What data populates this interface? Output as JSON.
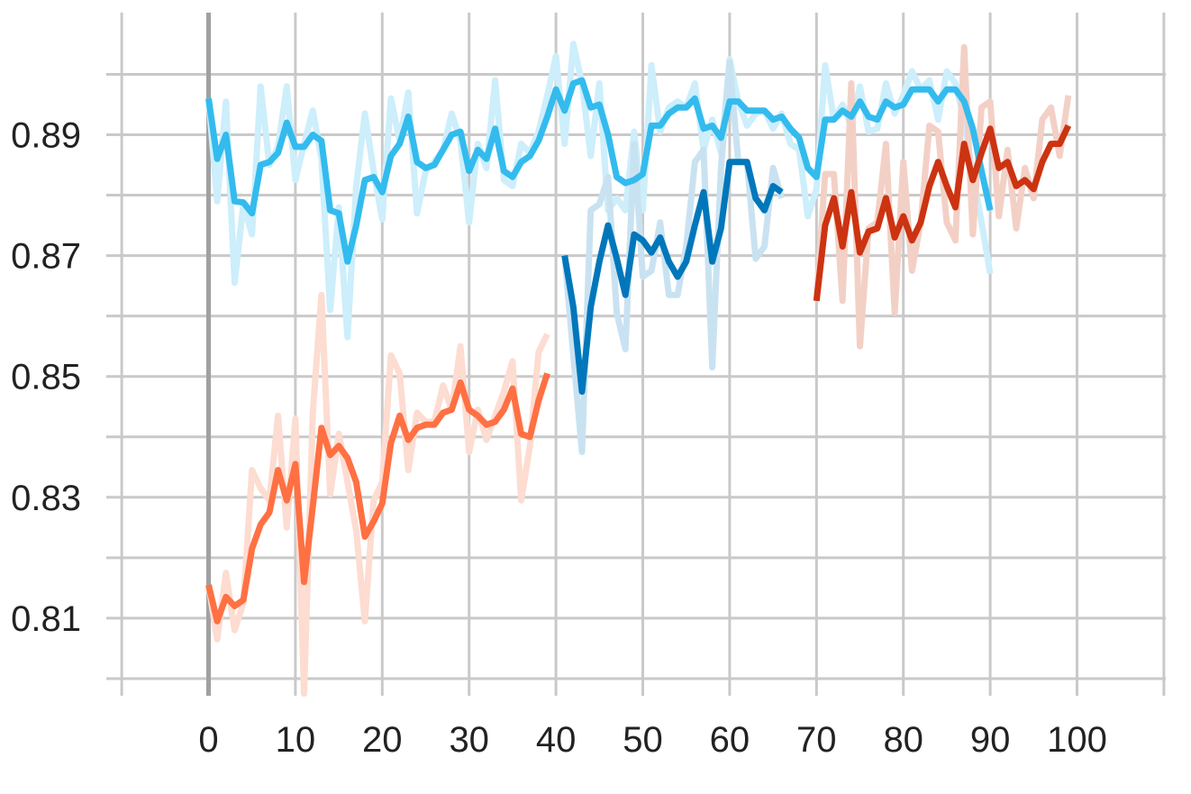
{
  "chart_data": {
    "type": "line",
    "title": "",
    "xlabel": "",
    "ylabel": "",
    "xlim": [
      -10,
      110
    ],
    "ylim": [
      0.8,
      0.909
    ],
    "x_ticks": [
      0,
      10,
      20,
      30,
      40,
      50,
      60,
      70,
      80,
      90,
      100
    ],
    "x_tick_labels": [
      "0",
      "10",
      "20",
      "30",
      "40",
      "50",
      "60",
      "70",
      "80",
      "90",
      "100"
    ],
    "y_ticks": [
      0.81,
      0.83,
      0.85,
      0.87,
      0.89
    ],
    "y_tick_labels": [
      "0.81",
      "0.83",
      "0.85",
      "0.87",
      "0.89"
    ],
    "grid": true,
    "legend": "none",
    "series": [
      {
        "color": "#33BBEE",
        "raw_color": "#cdeefb",
        "x_start": 0,
        "smoothed": [
          0.896,
          0.886,
          0.89,
          0.879,
          0.8788,
          0.877,
          0.885,
          0.8855,
          0.887,
          0.892,
          0.888,
          0.888,
          0.89,
          0.889,
          0.8775,
          0.877,
          0.869,
          0.875,
          0.8825,
          0.883,
          0.8805,
          0.8865,
          0.8885,
          0.893,
          0.8855,
          0.8845,
          0.885,
          0.8875,
          0.89,
          0.8905,
          0.884,
          0.8875,
          0.886,
          0.891,
          0.884,
          0.883,
          0.8855,
          0.8865,
          0.889,
          0.893,
          0.8975,
          0.894,
          0.8985,
          0.899,
          0.8945,
          0.895,
          0.89,
          0.883,
          0.882,
          0.8825,
          0.8835,
          0.8915,
          0.8915,
          0.8935,
          0.8945,
          0.8945,
          0.896,
          0.891,
          0.8915,
          0.8895,
          0.8955,
          0.8955,
          0.894,
          0.894,
          0.894,
          0.8925,
          0.893,
          0.891,
          0.8895,
          0.8845,
          0.883,
          0.8925,
          0.8925,
          0.894,
          0.893,
          0.8955,
          0.893,
          0.8925,
          0.8955,
          0.8945,
          0.895,
          0.8975,
          0.8975,
          0.8975,
          0.8955,
          0.8975,
          0.8975,
          0.8955,
          0.891,
          0.884,
          0.8775
        ],
        "raw": [
          0.896,
          0.879,
          0.8955,
          0.8655,
          0.8785,
          0.8735,
          0.898,
          0.885,
          0.888,
          0.898,
          0.8825,
          0.8885,
          0.894,
          0.886,
          0.861,
          0.878,
          0.8565,
          0.8815,
          0.8935,
          0.884,
          0.876,
          0.896,
          0.889,
          0.897,
          0.877,
          0.884,
          0.8855,
          0.8875,
          0.8935,
          0.889,
          0.8755,
          0.8885,
          0.8845,
          0.899,
          0.8825,
          0.8815,
          0.8885,
          0.887,
          0.8905,
          0.8965,
          0.903,
          0.8885,
          0.905,
          0.8985,
          0.8865,
          0.8985,
          0.8775,
          0.8795,
          0.8775,
          0.8905,
          0.8775,
          0.9015,
          0.8905,
          0.8945,
          0.8955,
          0.8945,
          0.8985,
          0.8875,
          0.8925,
          0.887,
          0.9025,
          0.8955,
          0.8915,
          0.8935,
          0.894,
          0.891,
          0.8935,
          0.8885,
          0.8875,
          0.8765,
          0.881,
          0.9015,
          0.8925,
          0.895,
          0.8915,
          0.898,
          0.8905,
          0.891,
          0.8985,
          0.8935,
          0.8965,
          0.9005,
          0.8975,
          0.899,
          0.8925,
          0.9005,
          0.8985,
          0.8925,
          0.8835,
          0.8755,
          0.867
        ]
      },
      {
        "color": "#FF7043",
        "raw_color": "#fddcd1",
        "x_start": 0,
        "smoothed": [
          0.8155,
          0.8095,
          0.8135,
          0.812,
          0.813,
          0.8215,
          0.8255,
          0.8275,
          0.8345,
          0.8295,
          0.8355,
          0.816,
          0.8285,
          0.8415,
          0.837,
          0.8385,
          0.8365,
          0.8325,
          0.8235,
          0.826,
          0.829,
          0.839,
          0.8435,
          0.8395,
          0.8415,
          0.842,
          0.842,
          0.844,
          0.8445,
          0.849,
          0.8445,
          0.8435,
          0.842,
          0.8425,
          0.8445,
          0.848,
          0.8405,
          0.84,
          0.846,
          0.8505
        ],
        "raw": [
          0.8155,
          0.8065,
          0.8175,
          0.808,
          0.8125,
          0.8345,
          0.8315,
          0.8295,
          0.8435,
          0.825,
          0.843,
          0.7975,
          0.844,
          0.8635,
          0.8305,
          0.8405,
          0.8325,
          0.8245,
          0.8095,
          0.8295,
          0.8325,
          0.8535,
          0.8505,
          0.8345,
          0.844,
          0.8425,
          0.8425,
          0.8485,
          0.8445,
          0.855,
          0.8375,
          0.8445,
          0.8395,
          0.8435,
          0.8475,
          0.8525,
          0.8295,
          0.8385,
          0.854,
          0.857
        ]
      },
      {
        "color": "#0077BB",
        "raw_color": "#c9e2f1",
        "x_start": 41,
        "smoothed": [
          0.87,
          0.8615,
          0.8475,
          0.8615,
          0.869,
          0.875,
          0.8695,
          0.8635,
          0.8735,
          0.8725,
          0.8705,
          0.873,
          0.869,
          0.8665,
          0.869,
          0.875,
          0.8805,
          0.869,
          0.8745,
          0.8855,
          0.8855,
          0.8855,
          0.8795,
          0.8775,
          0.8815,
          0.8805
        ],
        "raw": [
          0.87,
          0.8535,
          0.8375,
          0.8775,
          0.8785,
          0.883,
          0.8605,
          0.8545,
          0.8885,
          0.8665,
          0.8675,
          0.8755,
          0.8635,
          0.8635,
          0.8715,
          0.8855,
          0.8875,
          0.8515,
          0.8845,
          0.902,
          0.8855,
          0.8855,
          0.8695,
          0.8715,
          0.8845,
          0.8795
        ]
      },
      {
        "color": "#CC3311",
        "raw_color": "#f3d0c6",
        "x_start": 70,
        "smoothed": [
          0.8625,
          0.875,
          0.8795,
          0.8715,
          0.8805,
          0.8705,
          0.874,
          0.8745,
          0.8795,
          0.873,
          0.8765,
          0.8725,
          0.8755,
          0.8815,
          0.8855,
          0.8815,
          0.878,
          0.8885,
          0.8825,
          0.887,
          0.891,
          0.8845,
          0.8855,
          0.8815,
          0.8825,
          0.881,
          0.8855,
          0.8885,
          0.8885,
          0.8915
        ],
        "raw": [
          0.8625,
          0.8835,
          0.8835,
          0.8625,
          0.8985,
          0.855,
          0.8745,
          0.8755,
          0.8885,
          0.8605,
          0.8855,
          0.8675,
          0.8755,
          0.8915,
          0.8905,
          0.8755,
          0.8725,
          0.9045,
          0.8735,
          0.8945,
          0.8955,
          0.8765,
          0.8875,
          0.8745,
          0.8845,
          0.8795,
          0.8925,
          0.8945,
          0.8865,
          0.8965
        ]
      }
    ]
  }
}
